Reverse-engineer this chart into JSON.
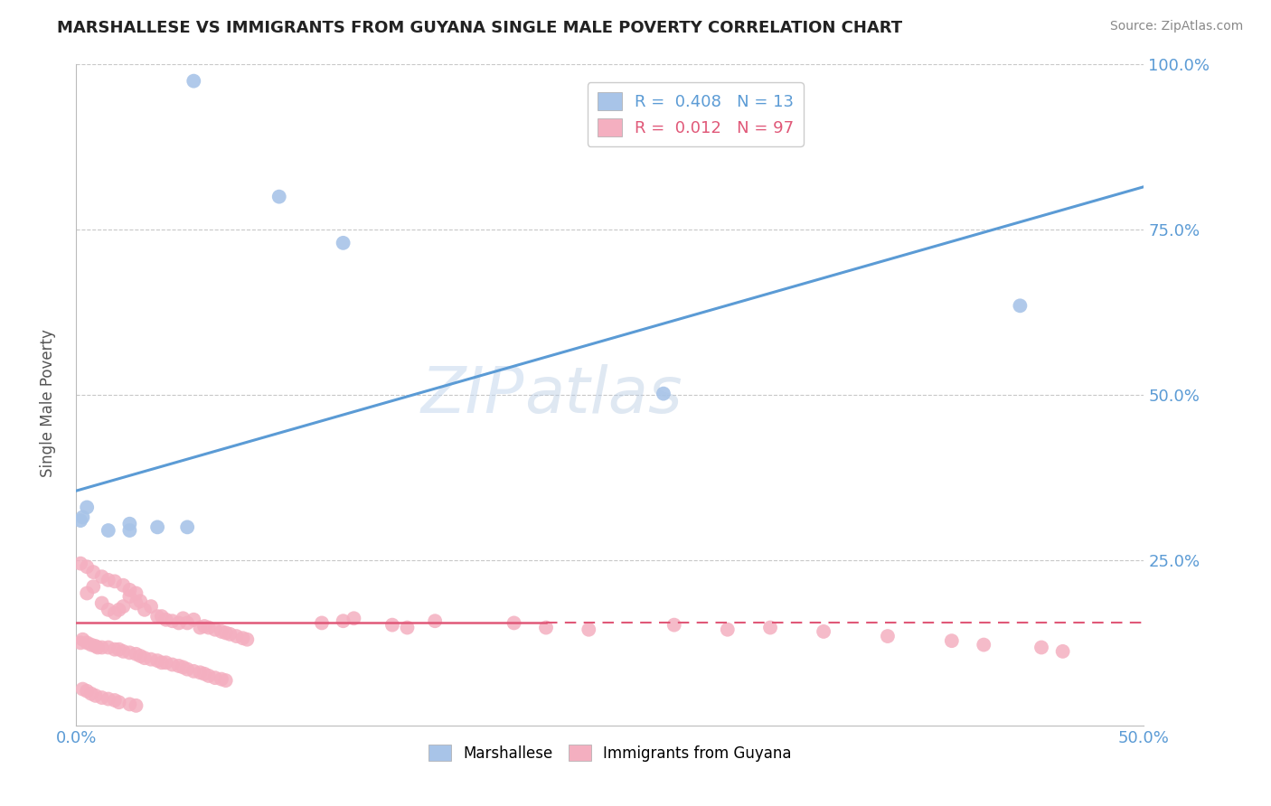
{
  "title": "MARSHALLESE VS IMMIGRANTS FROM GUYANA SINGLE MALE POVERTY CORRELATION CHART",
  "source": "Source: ZipAtlas.com",
  "ylabel": "Single Male Poverty",
  "xlim": [
    0.0,
    0.5
  ],
  "ylim": [
    0.0,
    1.0
  ],
  "xticks": [
    0.0,
    0.1,
    0.2,
    0.3,
    0.4,
    0.5
  ],
  "xtick_labels": [
    "0.0%",
    "",
    "",
    "",
    "",
    "50.0%"
  ],
  "ytick_labels": [
    "",
    "25.0%",
    "50.0%",
    "75.0%",
    "100.0%"
  ],
  "yticks": [
    0.0,
    0.25,
    0.5,
    0.75,
    1.0
  ],
  "blue_r": 0.408,
  "blue_n": 13,
  "pink_r": 0.012,
  "pink_n": 97,
  "blue_color": "#a8c4e8",
  "pink_color": "#f4afc0",
  "blue_line_color": "#5b9bd5",
  "pink_line_color": "#e05878",
  "grid_color": "#c8c8c8",
  "title_color": "#222222",
  "axis_label_color": "#555555",
  "tick_color": "#5b9bd5",
  "legend_text_blue": "R =  0.408   N = 13",
  "legend_text_pink": "R =  0.012   N = 97",
  "blue_trend_x0": 0.0,
  "blue_trend_y0": 0.355,
  "blue_trend_x1": 0.5,
  "blue_trend_y1": 0.815,
  "pink_trend_x0": 0.0,
  "pink_trend_y0": 0.155,
  "pink_trend_x1": 0.5,
  "pink_trend_y1": 0.155,
  "blue_x": [
    0.055,
    0.095,
    0.125,
    0.005,
    0.025,
    0.015,
    0.025,
    0.038,
    0.052,
    0.002,
    0.003,
    0.275,
    0.442
  ],
  "blue_y": [
    0.975,
    0.8,
    0.73,
    0.33,
    0.305,
    0.295,
    0.295,
    0.3,
    0.3,
    0.31,
    0.315,
    0.502,
    0.635
  ],
  "pink_x": [
    0.005,
    0.008,
    0.012,
    0.015,
    0.018,
    0.02,
    0.022,
    0.025,
    0.028,
    0.03,
    0.032,
    0.035,
    0.038,
    0.04,
    0.042,
    0.045,
    0.048,
    0.05,
    0.052,
    0.055,
    0.058,
    0.06,
    0.062,
    0.065,
    0.068,
    0.07,
    0.072,
    0.075,
    0.078,
    0.08,
    0.002,
    0.003,
    0.005,
    0.007,
    0.009,
    0.01,
    0.012,
    0.015,
    0.018,
    0.02,
    0.022,
    0.025,
    0.028,
    0.03,
    0.032,
    0.035,
    0.038,
    0.04,
    0.042,
    0.045,
    0.048,
    0.05,
    0.052,
    0.055,
    0.058,
    0.06,
    0.062,
    0.065,
    0.068,
    0.07,
    0.003,
    0.005,
    0.007,
    0.009,
    0.012,
    0.015,
    0.018,
    0.02,
    0.025,
    0.028,
    0.115,
    0.125,
    0.13,
    0.148,
    0.155,
    0.168,
    0.205,
    0.22,
    0.24,
    0.28,
    0.305,
    0.325,
    0.35,
    0.38,
    0.41,
    0.425,
    0.452,
    0.462,
    0.002,
    0.005,
    0.008,
    0.012,
    0.015,
    0.018,
    0.022,
    0.025,
    0.028
  ],
  "pink_y": [
    0.2,
    0.21,
    0.185,
    0.175,
    0.17,
    0.175,
    0.18,
    0.195,
    0.185,
    0.188,
    0.175,
    0.18,
    0.165,
    0.165,
    0.16,
    0.158,
    0.155,
    0.162,
    0.155,
    0.16,
    0.148,
    0.15,
    0.148,
    0.145,
    0.142,
    0.14,
    0.138,
    0.135,
    0.132,
    0.13,
    0.125,
    0.13,
    0.125,
    0.122,
    0.12,
    0.118,
    0.118,
    0.118,
    0.115,
    0.115,
    0.112,
    0.11,
    0.108,
    0.105,
    0.102,
    0.1,
    0.098,
    0.095,
    0.095,
    0.092,
    0.09,
    0.088,
    0.085,
    0.082,
    0.08,
    0.078,
    0.075,
    0.072,
    0.07,
    0.068,
    0.055,
    0.052,
    0.048,
    0.045,
    0.042,
    0.04,
    0.038,
    0.035,
    0.032,
    0.03,
    0.155,
    0.158,
    0.162,
    0.152,
    0.148,
    0.158,
    0.155,
    0.148,
    0.145,
    0.152,
    0.145,
    0.148,
    0.142,
    0.135,
    0.128,
    0.122,
    0.118,
    0.112,
    0.245,
    0.24,
    0.232,
    0.225,
    0.22,
    0.218,
    0.212,
    0.205,
    0.2
  ]
}
